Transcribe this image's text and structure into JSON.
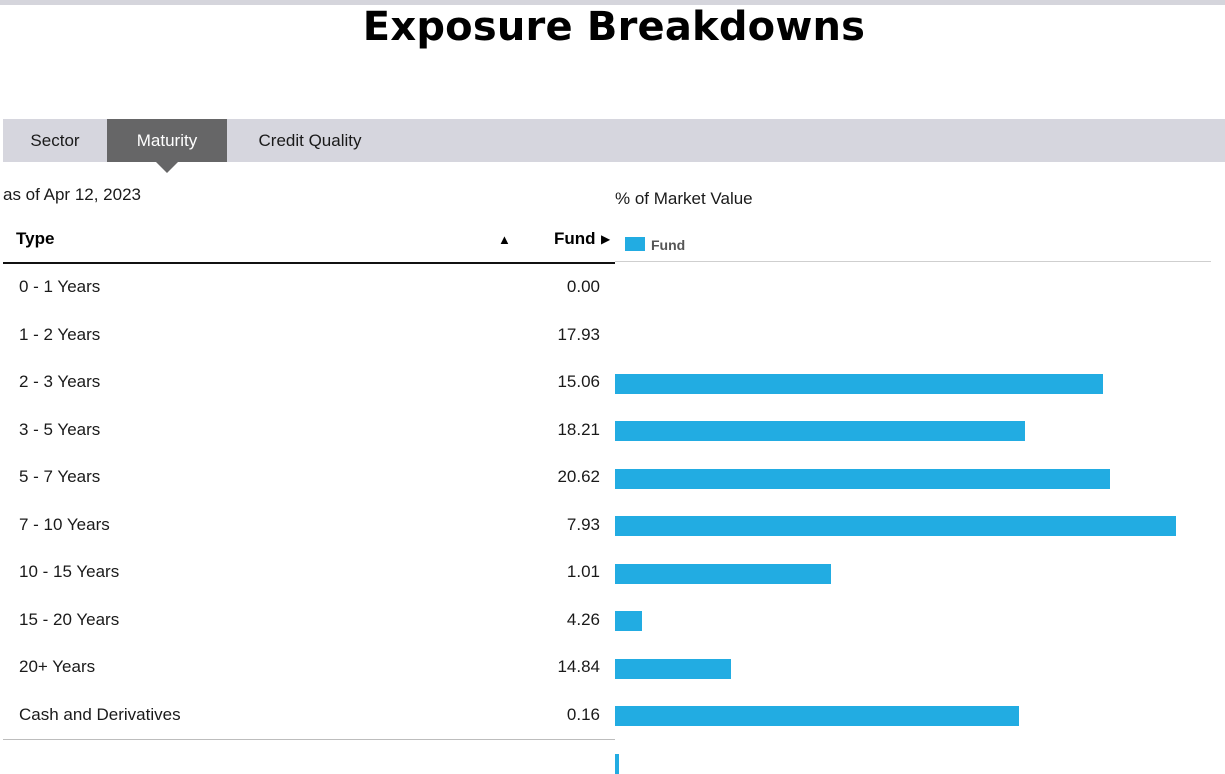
{
  "page": {
    "title": "Exposure Breakdowns"
  },
  "tabs": [
    {
      "label": "Sector",
      "active": false
    },
    {
      "label": "Maturity",
      "active": true
    },
    {
      "label": "Credit Quality",
      "active": false
    }
  ],
  "as_of": "as of Apr 12, 2023",
  "table": {
    "col_type": "Type",
    "col_fund": "Fund",
    "sort_up_glyph": "▲",
    "sort_right_glyph": "▶"
  },
  "chart_meta": {
    "value_label": "% of Market Value",
    "bar_color": "#22ace2"
  },
  "chart_data": {
    "type": "bar",
    "orientation": "horizontal",
    "categories": [
      "0 - 1 Years",
      "1 - 2 Years",
      "2 - 3 Years",
      "3 - 5 Years",
      "5 - 7 Years",
      "7 - 10 Years",
      "10 - 15 Years",
      "15 - 20 Years",
      "20+ Years",
      "Cash and Derivatives"
    ],
    "series": [
      {
        "name": "Fund",
        "values": [
          0.0,
          17.93,
          15.06,
          18.21,
          20.62,
          7.93,
          1.01,
          4.26,
          14.84,
          0.16
        ]
      }
    ],
    "value_labels": [
      "0.00",
      "17.93",
      "15.06",
      "18.21",
      "20.62",
      "7.93",
      "1.01",
      "4.26",
      "14.84",
      "0.16"
    ],
    "title": "",
    "xlabel": "% of Market Value",
    "ylabel": "",
    "grid": false,
    "legend": "top-left"
  }
}
